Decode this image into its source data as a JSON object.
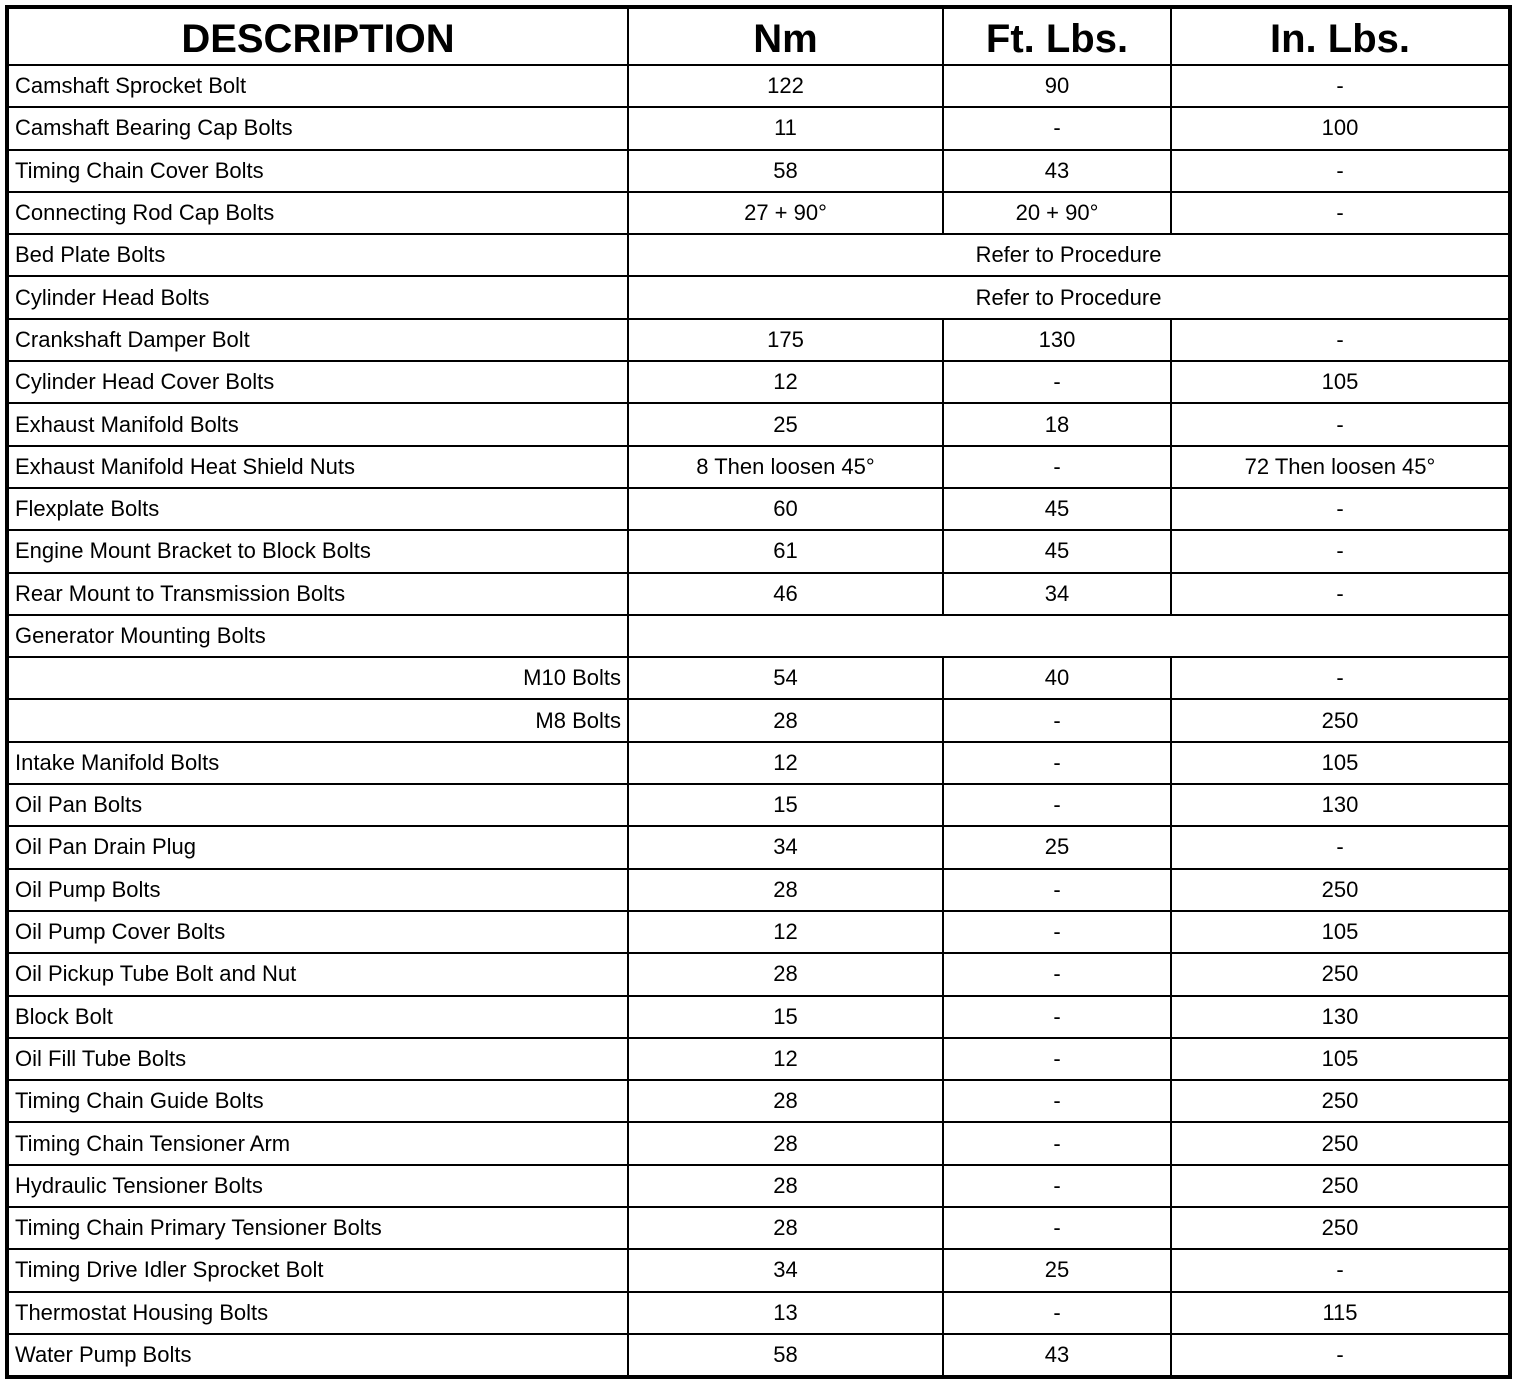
{
  "table": {
    "headers": [
      "DESCRIPTION",
      "Nm",
      "Ft. Lbs.",
      "In. Lbs."
    ],
    "rows": [
      {
        "desc": "Camshaft Sprocket Bolt",
        "nm": "122",
        "ft": "90",
        "in": "-"
      },
      {
        "desc": "Camshaft Bearing Cap Bolts",
        "nm": "11",
        "ft": "-",
        "in": "100"
      },
      {
        "desc": "Timing Chain Cover Bolts",
        "nm": "58",
        "ft": "43",
        "in": "-"
      },
      {
        "desc": "Connecting Rod Cap Bolts",
        "nm": "27 + 90°",
        "ft": "20 + 90°",
        "in": "-"
      },
      {
        "desc": "Bed Plate Bolts",
        "span": "Refer to Procedure"
      },
      {
        "desc": "Cylinder Head Bolts",
        "span": "Refer to Procedure"
      },
      {
        "desc": "Crankshaft Damper Bolt",
        "nm": "175",
        "ft": "130",
        "in": "-"
      },
      {
        "desc": "Cylinder Head Cover Bolts",
        "nm": "12",
        "ft": "-",
        "in": "105"
      },
      {
        "desc": "Exhaust Manifold Bolts",
        "nm": "25",
        "ft": "18",
        "in": "-"
      },
      {
        "desc": "Exhaust Manifold Heat Shield Nuts",
        "nm": "8 Then loosen 45°",
        "ft": "-",
        "in": "72 Then loosen 45°"
      },
      {
        "desc": "Flexplate Bolts",
        "nm": "60",
        "ft": "45",
        "in": "-"
      },
      {
        "desc": "Engine Mount Bracket to Block Bolts",
        "nm": "61",
        "ft": "45",
        "in": "-"
      },
      {
        "desc": "Rear Mount to Transmission Bolts",
        "nm": "46",
        "ft": "34",
        "in": "-"
      },
      {
        "desc": "Generator Mounting Bolts",
        "span": ""
      },
      {
        "desc": "M10 Bolts",
        "sub": true,
        "nm": "54",
        "ft": "40",
        "in": "-"
      },
      {
        "desc": "M8 Bolts",
        "sub": true,
        "nm": "28",
        "ft": "-",
        "in": "250"
      },
      {
        "desc": "Intake Manifold Bolts",
        "nm": "12",
        "ft": "-",
        "in": "105"
      },
      {
        "desc": "Oil Pan Bolts",
        "nm": "15",
        "ft": "-",
        "in": "130"
      },
      {
        "desc": "Oil Pan Drain Plug",
        "nm": "34",
        "ft": "25",
        "in": "-"
      },
      {
        "desc": "Oil Pump Bolts",
        "nm": "28",
        "ft": "-",
        "in": "250"
      },
      {
        "desc": "Oil Pump Cover Bolts",
        "nm": "12",
        "ft": "-",
        "in": "105"
      },
      {
        "desc": "Oil Pickup Tube Bolt and Nut",
        "nm": "28",
        "ft": "-",
        "in": "250"
      },
      {
        "desc": "Block Bolt",
        "nm": "15",
        "ft": "-",
        "in": "130"
      },
      {
        "desc": "Oil Fill Tube Bolts",
        "nm": "12",
        "ft": "-",
        "in": "105"
      },
      {
        "desc": "Timing Chain Guide Bolts",
        "nm": "28",
        "ft": "-",
        "in": "250"
      },
      {
        "desc": "Timing Chain Tensioner Arm",
        "nm": "28",
        "ft": "-",
        "in": "250"
      },
      {
        "desc": "Hydraulic Tensioner Bolts",
        "nm": "28",
        "ft": "-",
        "in": "250"
      },
      {
        "desc": "Timing Chain Primary Tensioner Bolts",
        "nm": "28",
        "ft": "-",
        "in": "250"
      },
      {
        "desc": "Timing Drive Idler Sprocket Bolt",
        "nm": "34",
        "ft": "25",
        "in": "-"
      },
      {
        "desc": "Thermostat Housing Bolts",
        "nm": "13",
        "ft": "-",
        "in": "115"
      },
      {
        "desc": "Water Pump Bolts",
        "nm": "58",
        "ft": "43",
        "in": "-"
      }
    ]
  }
}
